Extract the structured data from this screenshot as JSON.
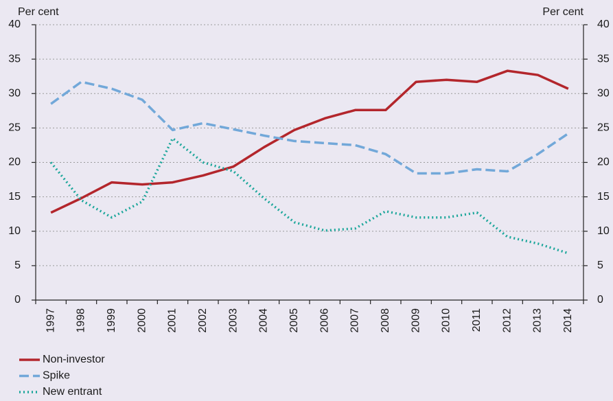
{
  "chart_data": {
    "type": "line",
    "y_label": "Per cent",
    "y2_label": "Per cent",
    "categories": [
      "1997",
      "1998",
      "1999",
      "2000",
      "2001",
      "2002",
      "2003",
      "2004",
      "2005",
      "2006",
      "2007",
      "2008",
      "2009",
      "2010",
      "2011",
      "2012",
      "2013",
      "2014"
    ],
    "series": [
      {
        "name": "Non-investor",
        "color": "#b3262c",
        "style": "solid",
        "values": [
          12.7,
          14.8,
          17.1,
          16.8,
          17.1,
          18.1,
          19.4,
          22.2,
          24.7,
          26.4,
          27.6,
          27.6,
          31.7,
          32.0,
          31.7,
          33.3,
          32.7,
          30.7
        ]
      },
      {
        "name": "Spike",
        "color": "#72a8d9",
        "style": "dashed",
        "values": [
          28.5,
          31.7,
          30.7,
          29.1,
          24.7,
          25.7,
          24.8,
          23.9,
          23.1,
          22.8,
          22.5,
          21.2,
          18.4,
          18.4,
          19.0,
          18.7,
          21.2,
          24.2
        ]
      },
      {
        "name": "New entrant",
        "color": "#1ba69a",
        "style": "dotted",
        "values": [
          20.0,
          14.5,
          12.0,
          14.3,
          23.5,
          20.0,
          18.7,
          14.8,
          11.3,
          10.1,
          10.4,
          12.9,
          12.0,
          12.0,
          12.7,
          9.2,
          8.2,
          6.8
        ]
      }
    ],
    "ylim": [
      0,
      40
    ],
    "yticks": [
      0,
      5,
      10,
      15,
      20,
      25,
      30,
      35,
      40
    ],
    "y2lim": [
      0,
      40
    ],
    "y2ticks": [
      0,
      5,
      10,
      15,
      20,
      25,
      30,
      35,
      40
    ],
    "grid": true
  }
}
